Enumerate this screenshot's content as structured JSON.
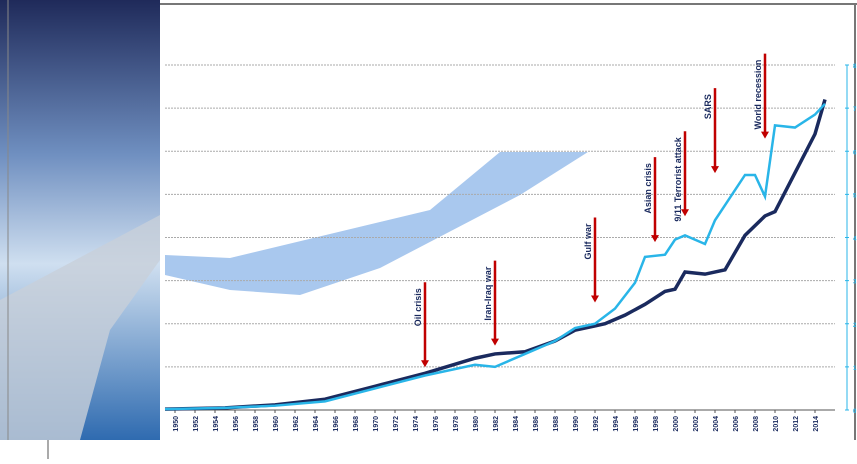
{
  "chart_data": {
    "type": "line",
    "xlim": [
      1949,
      2016
    ],
    "xticks": [
      1950,
      1952,
      1954,
      1956,
      1958,
      1960,
      1962,
      1964,
      1966,
      1968,
      1970,
      1972,
      1974,
      1976,
      1978,
      1980,
      1982,
      1984,
      1986,
      1988,
      1990,
      1992,
      1994,
      1996,
      1998,
      2000,
      2002,
      2004,
      2006,
      2008,
      2010,
      2012,
      2014
    ],
    "ylim": [
      0,
      8
    ],
    "yticks": [
      0,
      1,
      2,
      3,
      4,
      5,
      6,
      7,
      8
    ],
    "grid": true,
    "series": [
      {
        "name": "Dark",
        "color": "#1a2a5e",
        "x": [
          1949,
          1955,
          1960,
          1965,
          1970,
          1975,
          1980,
          1982,
          1985,
          1988,
          1990,
          1992,
          1993,
          1995,
          1997,
          1999,
          2000,
          2001,
          2003,
          2005,
          2007,
          2009,
          2010,
          2012,
          2014,
          2015
        ],
        "values": [
          0.02,
          0.05,
          0.12,
          0.25,
          0.55,
          0.85,
          1.2,
          1.3,
          1.35,
          1.6,
          1.85,
          1.95,
          2.0,
          2.2,
          2.45,
          2.75,
          2.8,
          3.2,
          3.15,
          3.25,
          4.05,
          4.5,
          4.6,
          5.5,
          6.4,
          7.2
        ]
      },
      {
        "name": "Light",
        "color": "#29b5e8",
        "x": [
          1949,
          1955,
          1960,
          1965,
          1970,
          1975,
          1980,
          1982,
          1985,
          1988,
          1990,
          1992,
          1994,
          1996,
          1997,
          1999,
          2000,
          2001,
          2003,
          2004,
          2005,
          2007,
          2008,
          2009,
          2010,
          2012,
          2014,
          2015
        ],
        "values": [
          0.02,
          0.05,
          0.1,
          0.2,
          0.5,
          0.8,
          1.05,
          1.0,
          1.3,
          1.6,
          1.9,
          2.0,
          2.35,
          2.95,
          3.55,
          3.6,
          3.95,
          4.05,
          3.85,
          4.4,
          4.75,
          5.45,
          5.45,
          4.95,
          6.6,
          6.55,
          6.85,
          7.1
        ]
      }
    ],
    "annotations": [
      {
        "label": "Oil crisis",
        "x": 1975,
        "y": 0.9
      },
      {
        "label": "Iran-Iraq war",
        "x": 1982,
        "y": 1.4
      },
      {
        "label": "Gulf war",
        "x": 1992,
        "y": 2.4
      },
      {
        "label": "Asian crisis",
        "x": 1998,
        "y": 3.8
      },
      {
        "label": "9/11 Terrorist attack",
        "x": 2001,
        "y": 4.4
      },
      {
        "label": "SARS",
        "x": 2004,
        "y": 5.4
      },
      {
        "label": "World recession",
        "x": 2009,
        "y": 6.2
      }
    ]
  }
}
